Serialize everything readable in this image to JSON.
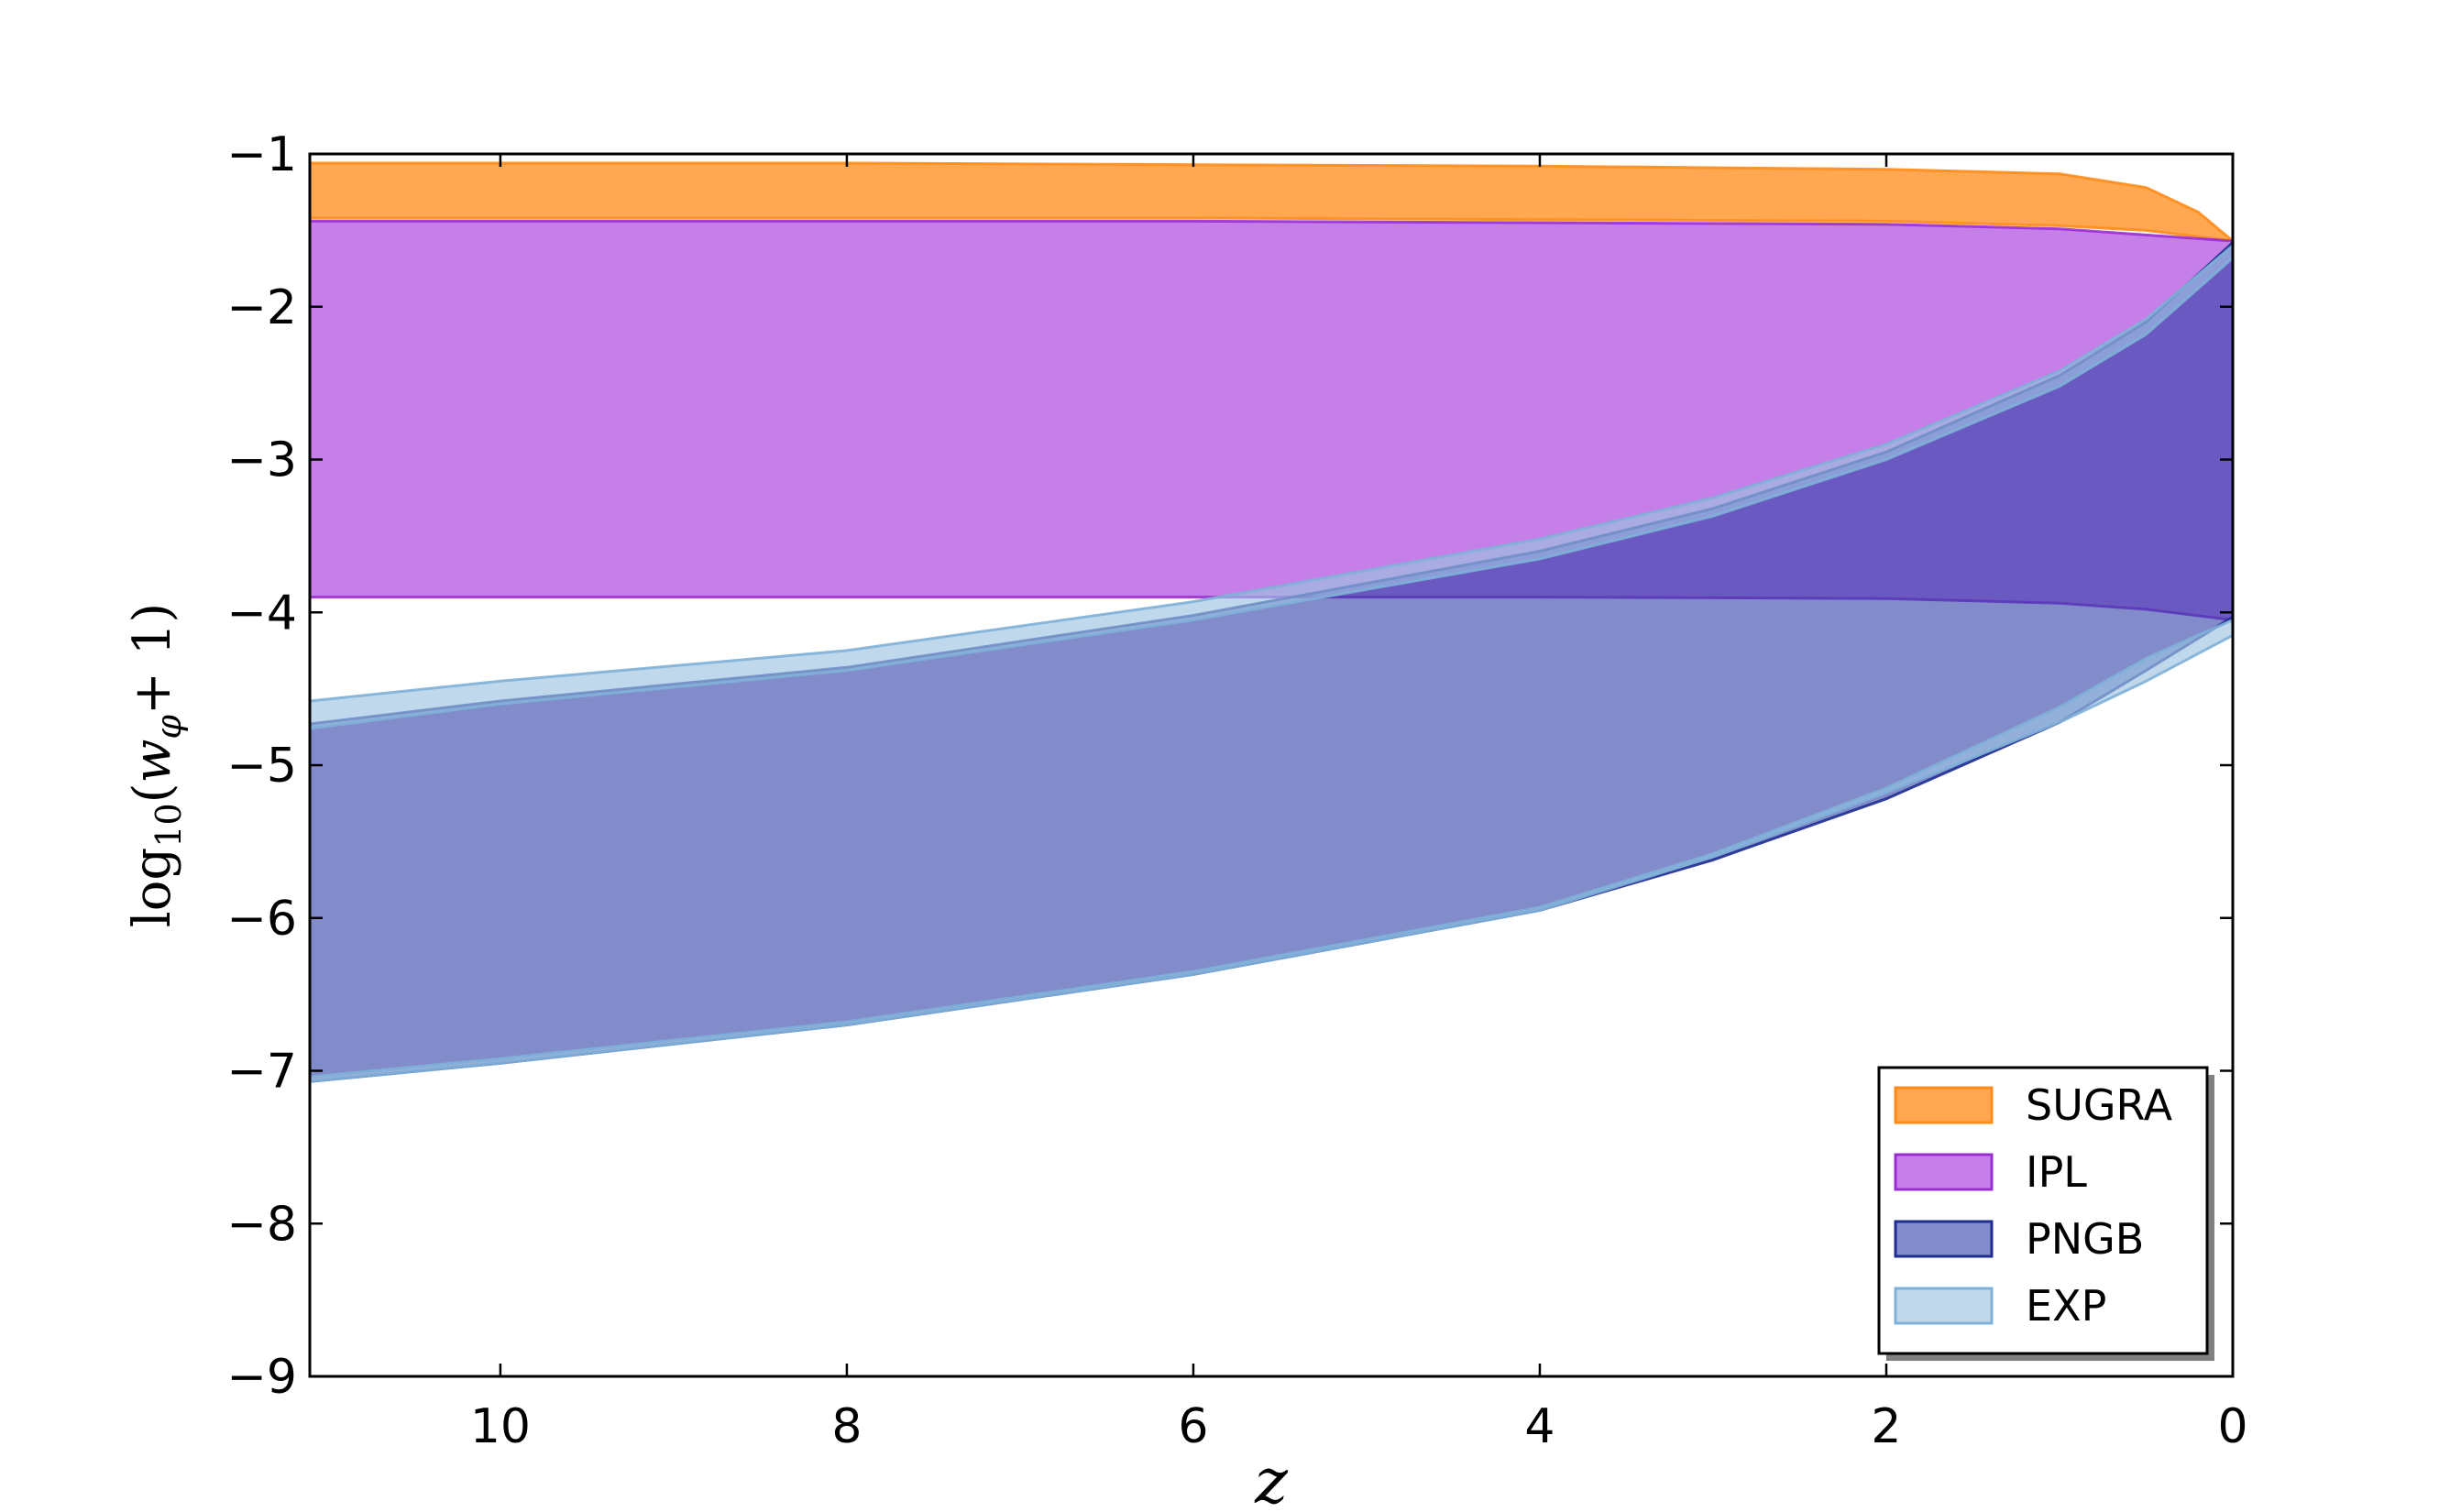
{
  "chart_data": {
    "type": "area",
    "xlabel": "z",
    "ylabel": {
      "prefix": "log",
      "prefix_sub": "10",
      "open": "(",
      "var": "w",
      "var_sub": "φ",
      "rest": "+ 1)"
    },
    "xlim": [
      11.1,
      0
    ],
    "ylim": [
      -9,
      -1
    ],
    "x_ticks": [
      {
        "value": 10,
        "label": "10"
      },
      {
        "value": 8,
        "label": "8"
      },
      {
        "value": 6,
        "label": "6"
      },
      {
        "value": 4,
        "label": "4"
      },
      {
        "value": 2,
        "label": "2"
      },
      {
        "value": 0,
        "label": "0"
      }
    ],
    "y_ticks": [
      {
        "value": -1,
        "label": "−1"
      },
      {
        "value": -2,
        "label": "−2"
      },
      {
        "value": -3,
        "label": "−3"
      },
      {
        "value": -4,
        "label": "−4"
      },
      {
        "value": -5,
        "label": "−5"
      },
      {
        "value": -6,
        "label": "−6"
      },
      {
        "value": -7,
        "label": "−7"
      },
      {
        "value": -8,
        "label": "−8"
      },
      {
        "value": -9,
        "label": "−9"
      }
    ],
    "grid": false,
    "legend_position": "bottom-right",
    "series": [
      {
        "name": "SUGRA",
        "fill": "#ff9933",
        "edge": "#ff8c1a",
        "opacity": 0.85,
        "upper": [
          [
            11.1,
            -1.06
          ],
          [
            8,
            -1.06
          ],
          [
            6,
            -1.07
          ],
          [
            4,
            -1.08
          ],
          [
            2,
            -1.1
          ],
          [
            1,
            -1.13
          ],
          [
            0.5,
            -1.22
          ],
          [
            0.2,
            -1.38
          ],
          [
            0,
            -1.57
          ]
        ],
        "lower": [
          [
            11.1,
            -1.42
          ],
          [
            8,
            -1.42
          ],
          [
            6,
            -1.42
          ],
          [
            4,
            -1.43
          ],
          [
            2,
            -1.44
          ],
          [
            1,
            -1.47
          ],
          [
            0.5,
            -1.5
          ],
          [
            0,
            -1.57
          ]
        ]
      },
      {
        "name": "IPL",
        "fill": "#b04de0",
        "edge": "#9a2fd0",
        "opacity": 0.72,
        "upper": [
          [
            11.1,
            -1.44
          ],
          [
            8,
            -1.44
          ],
          [
            6,
            -1.44
          ],
          [
            4,
            -1.45
          ],
          [
            2,
            -1.46
          ],
          [
            1,
            -1.49
          ],
          [
            0.5,
            -1.53
          ],
          [
            0,
            -1.57
          ]
        ],
        "lower": [
          [
            11.1,
            -3.9
          ],
          [
            8,
            -3.9
          ],
          [
            6,
            -3.9
          ],
          [
            4,
            -3.9
          ],
          [
            2,
            -3.91
          ],
          [
            1,
            -3.94
          ],
          [
            0.5,
            -3.98
          ],
          [
            0,
            -4.05
          ]
        ]
      },
      {
        "name": "PNGB",
        "fill": "#2f3fa8",
        "edge": "#1f2d90",
        "opacity": 0.6,
        "upper": [
          [
            11.1,
            -4.73
          ],
          [
            10,
            -4.58
          ],
          [
            8,
            -4.36
          ],
          [
            6,
            -4.02
          ],
          [
            4,
            -3.6
          ],
          [
            3,
            -3.32
          ],
          [
            2,
            -2.95
          ],
          [
            1,
            -2.45
          ],
          [
            0.5,
            -2.1
          ],
          [
            0,
            -1.58
          ]
        ],
        "lower": [
          [
            11.1,
            -7.07
          ],
          [
            10,
            -6.95
          ],
          [
            8,
            -6.7
          ],
          [
            6,
            -6.37
          ],
          [
            4,
            -5.95
          ],
          [
            3,
            -5.62
          ],
          [
            2,
            -5.22
          ],
          [
            1,
            -4.72
          ],
          [
            0.5,
            -4.38
          ],
          [
            0,
            -4.03
          ]
        ]
      },
      {
        "name": "EXP",
        "fill": "#9dc3e2",
        "edge": "#7fb0d8",
        "opacity": 0.65,
        "upper": [
          [
            11.1,
            -4.58
          ],
          [
            10,
            -4.45
          ],
          [
            8,
            -4.25
          ],
          [
            6,
            -3.93
          ],
          [
            4,
            -3.52
          ],
          [
            3,
            -3.25
          ],
          [
            2,
            -2.9
          ],
          [
            1,
            -2.42
          ],
          [
            0.5,
            -2.08
          ],
          [
            0,
            -1.6
          ]
        ],
        "lower": [
          [
            11.1,
            -4.76
          ],
          [
            10,
            -4.6
          ],
          [
            8,
            -4.38
          ],
          [
            6,
            -4.05
          ],
          [
            4,
            -3.65
          ],
          [
            3,
            -3.37
          ],
          [
            2,
            -3.0
          ],
          [
            1,
            -2.52
          ],
          [
            0.5,
            -2.18
          ],
          [
            0,
            -1.68
          ]
        ],
        "lower_band": [
          [
            11.1,
            -7.07
          ],
          [
            10,
            -6.95
          ],
          [
            8,
            -6.7
          ],
          [
            6,
            -6.37
          ],
          [
            4,
            -5.95
          ],
          [
            3,
            -5.6
          ],
          [
            2,
            -5.18
          ],
          [
            1,
            -4.72
          ],
          [
            0.5,
            -4.45
          ],
          [
            0,
            -4.15
          ]
        ],
        "lower_band_top": [
          [
            11.1,
            -7.04
          ],
          [
            10,
            -6.92
          ],
          [
            8,
            -6.68
          ],
          [
            6,
            -6.35
          ],
          [
            4,
            -5.93
          ],
          [
            3,
            -5.58
          ],
          [
            2,
            -5.15
          ],
          [
            1,
            -4.62
          ],
          [
            0.5,
            -4.3
          ],
          [
            0,
            -4.05
          ]
        ]
      }
    ],
    "legend": [
      {
        "label": "SUGRA",
        "fill": "#ff9933",
        "edge": "#ff8c1a",
        "opacity": 0.85
      },
      {
        "label": "IPL",
        "fill": "#b04de0",
        "edge": "#9a2fd0",
        "opacity": 0.72
      },
      {
        "label": "PNGB",
        "fill": "#2f3fa8",
        "edge": "#1f2d90",
        "opacity": 0.6
      },
      {
        "label": "EXP",
        "fill": "#9dc3e2",
        "edge": "#7fb0d8",
        "opacity": 0.65
      }
    ]
  }
}
